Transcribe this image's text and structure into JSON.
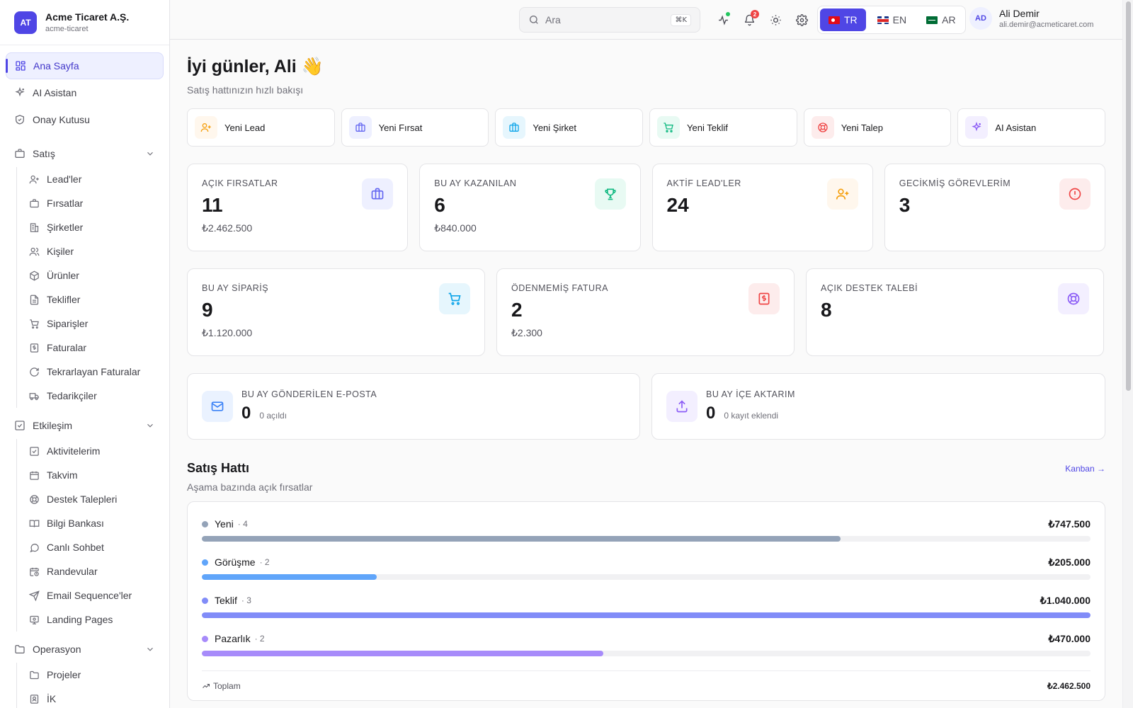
{
  "org": {
    "initials": "AT",
    "name": "Acme Ticaret A.Ş.",
    "slug": "acme-ticaret"
  },
  "nav": {
    "top": [
      {
        "label": "Ana Sayfa",
        "icon": "grid-icon",
        "active": true
      },
      {
        "label": "AI Asistan",
        "icon": "sparkles-icon"
      },
      {
        "label": "Onay Kutusu",
        "icon": "shield-check-icon"
      }
    ],
    "sales": {
      "label": "Satış",
      "items": [
        "Lead'ler",
        "Fırsatlar",
        "Şirketler",
        "Kişiler",
        "Ürünler",
        "Teklifler",
        "Siparişler",
        "Faturalar",
        "Tekrarlayan Faturalar",
        "Tedarikçiler"
      ]
    },
    "engagement": {
      "label": "Etkileşim",
      "items": [
        "Aktivitelerim",
        "Takvim",
        "Destek Talepleri",
        "Bilgi Bankası",
        "Canlı Sohbet",
        "Randevular",
        "Email Sequence'ler",
        "Landing Pages"
      ]
    },
    "operations": {
      "label": "Operasyon",
      "items": [
        "Projeler",
        "İK"
      ]
    }
  },
  "header": {
    "search_placeholder": "Ara",
    "search_shortcut": "⌘K",
    "notification_count": "2",
    "languages": [
      {
        "code": "TR",
        "active": true
      },
      {
        "code": "EN"
      },
      {
        "code": "AR"
      }
    ],
    "user": {
      "initials": "AD",
      "name": "Ali Demir",
      "email": "ali.demir@acmeticaret.com"
    }
  },
  "greeting": {
    "title": "İyi günler, Ali 👋",
    "subtitle": "Satış hattınızın hızlı bakışı"
  },
  "quick_actions": [
    {
      "label": "Yeni Lead",
      "icon": "user-plus-icon",
      "color": "#f59e0b",
      "bg": "#fff7ed"
    },
    {
      "label": "Yeni Fırsat",
      "icon": "briefcase-icon",
      "color": "#6366f1",
      "bg": "#eef0ff"
    },
    {
      "label": "Yeni Şirket",
      "icon": "briefcase-icon",
      "color": "#0ea5e9",
      "bg": "#e6f6fd"
    },
    {
      "label": "Yeni Teklif",
      "icon": "cart-icon",
      "color": "#10b981",
      "bg": "#e8faf3"
    },
    {
      "label": "Yeni Talep",
      "icon": "lifebuoy-icon",
      "color": "#ef4444",
      "bg": "#fdecec"
    },
    {
      "label": "AI Asistan",
      "icon": "sparkles-icon",
      "color": "#8b5cf6",
      "bg": "#f3efff"
    }
  ],
  "stats_row1": [
    {
      "label": "AÇIK FIRSATLAR",
      "value": "11",
      "sub": "₺2.462.500",
      "icon": "briefcase-icon",
      "color": "#6366f1",
      "bg": "#eef0ff"
    },
    {
      "label": "BU AY KAZANILAN",
      "value": "6",
      "sub": "₺840.000",
      "icon": "trophy-icon",
      "color": "#10b981",
      "bg": "#e8faf3"
    },
    {
      "label": "AKTİF LEAD'LER",
      "value": "24",
      "sub": "",
      "icon": "user-plus-icon",
      "color": "#f59e0b",
      "bg": "#fff7ed"
    },
    {
      "label": "GECİKMİŞ GÖREVLERİM",
      "value": "3",
      "sub": "",
      "icon": "alert-circle-icon",
      "color": "#ef4444",
      "bg": "#fdecec"
    }
  ],
  "stats_row2": [
    {
      "label": "BU AY SİPARİŞ",
      "value": "9",
      "sub": "₺1.120.000",
      "icon": "cart-icon",
      "color": "#0ea5e9",
      "bg": "#e6f6fd"
    },
    {
      "label": "ÖDENMEMİŞ FATURA",
      "value": "2",
      "sub": "₺2.300",
      "icon": "invoice-icon",
      "color": "#ef4444",
      "bg": "#fdecec"
    },
    {
      "label": "AÇIK DESTEK TALEBİ",
      "value": "8",
      "sub": "",
      "icon": "lifebuoy-icon",
      "color": "#8b5cf6",
      "bg": "#f3efff"
    }
  ],
  "stats_row3": [
    {
      "label": "BU AY GÖNDERİLEN E-POSTA",
      "value": "0",
      "note": "0 açıldı",
      "icon": "mail-icon",
      "color": "#3b82f6",
      "bg": "#eaf2ff"
    },
    {
      "label": "BU AY İÇE AKTARIM",
      "value": "0",
      "note": "0 kayıt eklendi",
      "icon": "upload-icon",
      "color": "#8b5cf6",
      "bg": "#f3efff"
    }
  ],
  "pipeline": {
    "title": "Satış Hattı",
    "subtitle": "Aşama bazında açık fırsatlar",
    "link": "Kanban →",
    "stages": [
      {
        "name": "Yeni",
        "count": "· 4",
        "amount": "₺747.500",
        "share": 0.719,
        "color": "#94a3b8"
      },
      {
        "name": "Görüşme",
        "count": "· 2",
        "amount": "₺205.000",
        "share": 0.197,
        "color": "#60a5fa"
      },
      {
        "name": "Teklif",
        "count": "· 3",
        "amount": "₺1.040.000",
        "share": 1.0,
        "color": "#818cf8"
      },
      {
        "name": "Pazarlık",
        "count": "· 2",
        "amount": "₺470.000",
        "share": 0.452,
        "color": "#a78bfa"
      }
    ],
    "total_label": "Toplam",
    "total_amount": "₺2.462.500"
  }
}
